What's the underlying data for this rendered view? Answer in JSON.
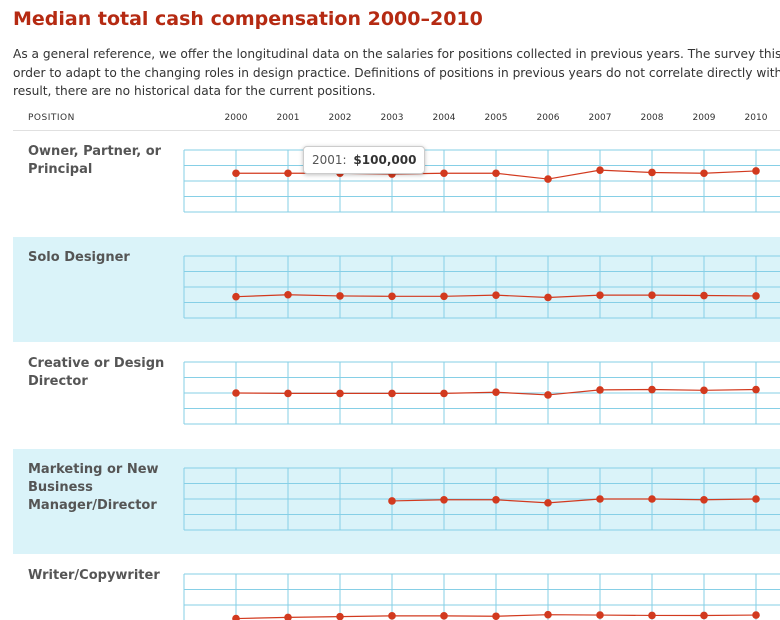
{
  "page": {
    "title": "Median total cash compensation 2000–2010",
    "intro_lines": [
      "As a general reference, we offer the longitudinal data on the salaries for positions collected in previous years. The survey this year launched",
      "order to adapt to the changing roles in design practice. Definitions of positions in previous years do not correlate directly with the definitions",
      "result, there are no historical data for the current positions."
    ]
  },
  "table_header": {
    "position_label": "POSITION",
    "years": [
      "2000",
      "2001",
      "2002",
      "2003",
      "2004",
      "2005",
      "2006",
      "2007",
      "2008",
      "2009",
      "2010"
    ]
  },
  "colors": {
    "title": "#b52a12",
    "line": "#d23a1f",
    "grid": "#86cfe6",
    "alt_band": "#daf3f9"
  },
  "tooltip": {
    "year": "2001:",
    "value": "$100,000"
  },
  "chart_data": {
    "type": "line",
    "x": [
      2000,
      2001,
      2002,
      2003,
      2004,
      2005,
      2006,
      2007,
      2008,
      2009,
      2010
    ],
    "ylim": [
      0,
      160000
    ],
    "grid": true,
    "series": [
      {
        "name": "Owner, Partner, or Principal",
        "values": [
          100000,
          100000,
          100000,
          98000,
          100000,
          100000,
          85000,
          108000,
          102000,
          100000,
          106000
        ]
      },
      {
        "name": "Solo Designer",
        "values": [
          55000,
          60000,
          57000,
          56000,
          56000,
          59000,
          53000,
          59000,
          59000,
          58000,
          57000
        ]
      },
      {
        "name": "Creative or Design Director",
        "values": [
          80000,
          79000,
          79000,
          79000,
          79000,
          82000,
          75000,
          88000,
          89000,
          87000,
          89000
        ]
      },
      {
        "name": "Marketing or New Business Manager/Director",
        "values": [
          null,
          null,
          null,
          75000,
          78000,
          78000,
          70000,
          80000,
          80000,
          78000,
          80000
        ]
      },
      {
        "name": "Writer/Copywriter",
        "values": [
          45000,
          48000,
          50000,
          52000,
          52000,
          51000,
          55000,
          54000,
          53000,
          53000,
          54000
        ]
      }
    ]
  }
}
